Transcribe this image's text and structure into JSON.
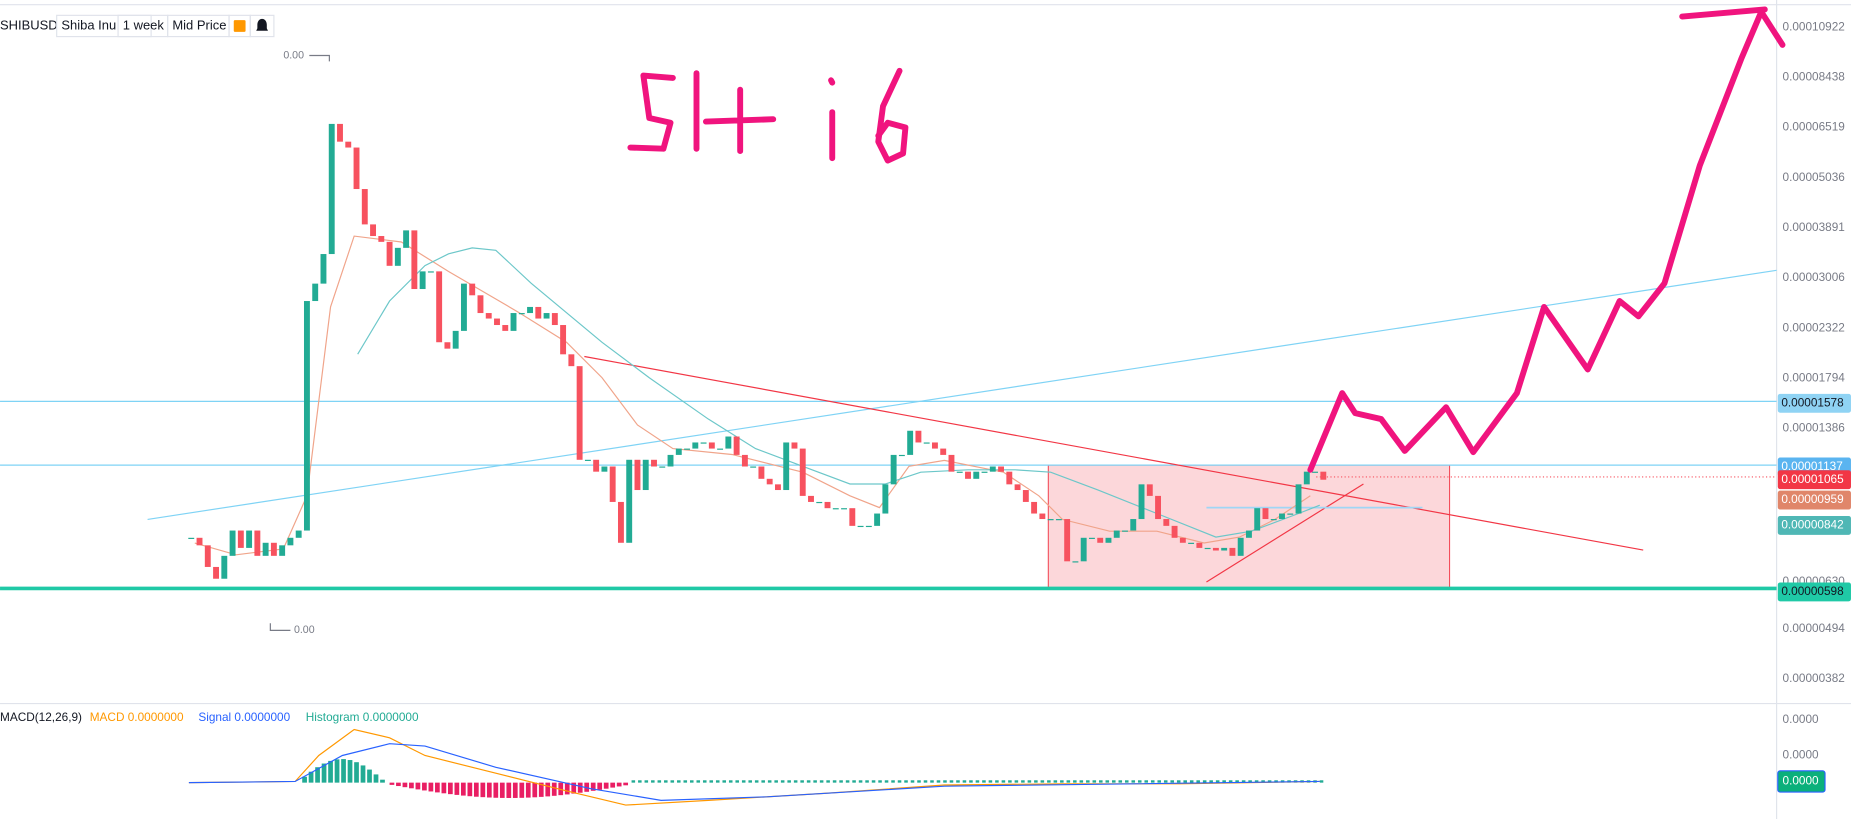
{
  "header": {
    "symbol": "SHIBUSD",
    "name": "Shiba Inu",
    "interval": "1 week",
    "price_type": "Mid Price"
  },
  "price_axis": [
    "0.00010922",
    "0.00008438",
    "0.00006519",
    "0.00005036",
    "0.00003891",
    "0.00003006",
    "0.00002322",
    "0.00001794",
    "0.00001386",
    "0.00000630",
    "0.00000494",
    "0.00000382"
  ],
  "price_badges": [
    {
      "label": "0.00001578",
      "color": "#8fd3f4",
      "text_color": "#131722"
    },
    {
      "label": "0.00001137",
      "color": "#5ab4f0",
      "text_color": "#ffffff"
    },
    {
      "label": "0.00001065",
      "color": "#f23645",
      "text_color": "#ffffff"
    },
    {
      "label": "0.00000959",
      "color": "#e0866a",
      "text_color": "#ffffff"
    },
    {
      "label": "0.00000842",
      "color": "#4fb7b5",
      "text_color": "#ffffff"
    },
    {
      "label": "0.00000598",
      "color": "#1fc9a6",
      "text_color": "#131722"
    }
  ],
  "annotations": [
    "0.00",
    "0.00"
  ],
  "candles": {
    "up_color": "#22ab94",
    "down_color": "#f7525f",
    "closes": [
      7.9e-06,
      7.6e-06,
      6.8e-06,
      6.4e-06,
      7.2e-06,
      8.2e-06,
      7.5e-06,
      8.2e-06,
      7.2e-06,
      7.7e-06,
      7.2e-06,
      7.6e-06,
      7.9e-06,
      8.2e-06,
      2.67e-05,
      2.92e-05,
      3.4e-05,
      6.64e-05,
      6.06e-05,
      5.88e-05,
      4.75e-05,
      3.96e-05,
      3.73e-05,
      3.62e-05,
      3.2e-05,
      3.51e-05,
      3.84e-05,
      2.84e-05,
      3.11e-05,
      3.11e-05,
      2.16e-05,
      2.09e-05,
      2.29e-05,
      2.92e-05,
      2.75e-05,
      2.51e-05,
      2.44e-05,
      2.36e-05,
      2.29e-05,
      2.51e-05,
      2.51e-05,
      2.59e-05,
      2.44e-05,
      2.51e-05,
      2.36e-05,
      2.03e-05,
      1.91e-05,
      1.18e-05,
      1.18e-05,
      1.11e-05,
      1.14e-05,
      9.5e-06,
      7.7e-06,
      1.18e-05,
      1.01e-05,
      1.18e-05,
      1.14e-05,
      1.14e-05,
      1.21e-05,
      1.25e-05,
      1.25e-05,
      1.29e-05,
      1.29e-05,
      1.25e-05,
      1.25e-05,
      1.33e-05,
      1.21e-05,
      1.14e-05,
      1.14e-05,
      1.07e-05,
      1.04e-05,
      1.01e-05,
      1.29e-05,
      1.25e-05,
      9.8e-06,
      9.5e-06,
      9.5e-06,
      9.2e-06,
      9.2e-06,
      9.2e-06,
      8.4e-06,
      8.4e-06,
      8.4e-06,
      8.95e-06,
      1.04e-05,
      1.21e-05,
      1.21e-05,
      1.37e-05,
      1.29e-05,
      1.29e-05,
      1.25e-05,
      1.21e-05,
      1.11e-05,
      1.11e-05,
      1.07e-05,
      1.11e-05,
      1.11e-05,
      1.14e-05,
      1.11e-05,
      1.04e-05,
      1.01e-05,
      9.5e-06,
      8.95e-06,
      8.7e-06,
      8.7e-06,
      8.7e-06,
      7e-06,
      7e-06,
      7.9e-06,
      7.9e-06,
      7.7e-06,
      7.9e-06,
      8.2e-06,
      8.2e-06,
      8.7e-06,
      1.04e-05,
      9.8e-06,
      8.7e-06,
      8.4e-06,
      7.9e-06,
      7.7e-06,
      7.7e-06,
      7.5e-06,
      7.5e-06,
      7.4e-06,
      7.5e-06,
      7.2e-06,
      7.9e-06,
      8.2e-06,
      9.2e-06,
      8.7e-06,
      8.7e-06,
      8.95e-06,
      8.95e-06,
      1.04e-05,
      1.11e-05,
      1.11e-05,
      1.065e-05
    ]
  },
  "macd": {
    "title": "MACD(12,26,9)",
    "macd_value": "MACD 0.0000000",
    "signal_value": "Signal 0.0000000",
    "histogram_value": "Histogram 0.0000000",
    "axis": [
      "0.0000",
      "0.0000"
    ],
    "badge": "0.0000"
  }
}
